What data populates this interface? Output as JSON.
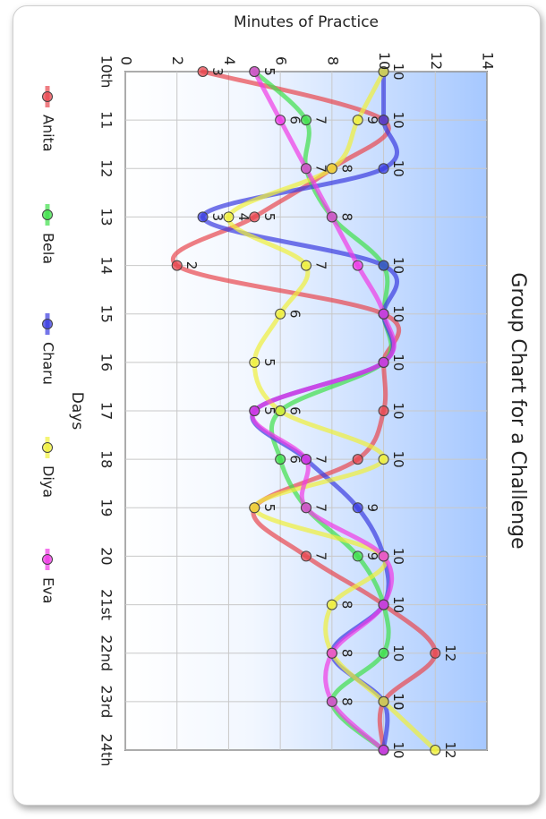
{
  "chart_data": {
    "type": "line",
    "title": "Group Chart for a Challenge",
    "xlabel": "Days",
    "ylabel": "Minutes of Practice",
    "ylim": [
      0,
      14
    ],
    "yticks": [
      "0",
      "2",
      "4",
      "6",
      "8",
      "10",
      "12",
      "14"
    ],
    "categories": [
      "10th",
      "11",
      "12",
      "13",
      "14",
      "15",
      "16",
      "17",
      "18",
      "19",
      "20",
      "21st",
      "22nd",
      "23rd",
      "24th"
    ],
    "grid": true,
    "legend_position": "bottom",
    "series": [
      {
        "name": "Anita",
        "color": "#e8474f",
        "values": [
          3,
          10,
          8,
          5,
          2,
          10,
          10,
          10,
          9,
          5,
          7,
          10,
          12,
          10,
          10
        ]
      },
      {
        "name": "Bela",
        "color": "#3fe04a",
        "values": [
          5,
          7,
          7,
          8,
          10,
          10,
          10,
          6,
          6,
          7,
          9,
          10,
          10,
          8,
          10
        ]
      },
      {
        "name": "Charu",
        "color": "#3a3ce0",
        "values": [
          10,
          10,
          10,
          3,
          10,
          10,
          10,
          5,
          7,
          9,
          10,
          10,
          8,
          10,
          10
        ]
      },
      {
        "name": "Diya",
        "color": "#f0f03a",
        "values": [
          10,
          9,
          8,
          4,
          7,
          6,
          5,
          6,
          10,
          5,
          10,
          8,
          8,
          10,
          12
        ]
      },
      {
        "name": "Eva",
        "color": "#f03ae6",
        "values": [
          5,
          6,
          7,
          8,
          9,
          10,
          10,
          5,
          7,
          7,
          10,
          10,
          8,
          8,
          10
        ]
      }
    ],
    "data_labels": {
      "Anita": [
        "3",
        "",
        "8",
        "5",
        "2",
        "10",
        "",
        "10",
        "",
        "5",
        "7",
        "10",
        "12",
        "10",
        "10"
      ],
      "Bela": [
        "5",
        "7",
        "7",
        "8",
        "",
        "",
        "",
        "6",
        "6",
        "7",
        "9",
        "",
        "10",
        "8",
        ""
      ],
      "Charu": [
        "10",
        "10",
        "10",
        "3",
        "10",
        "",
        "10",
        "5",
        "7",
        "9",
        "10",
        "",
        "8",
        "10",
        ""
      ],
      "Diya": [
        "",
        "9",
        "",
        "4",
        "7",
        "6",
        "5",
        "",
        "10",
        "",
        "",
        "8",
        "",
        "",
        "12"
      ],
      "Eva": [
        "5",
        "6",
        "",
        "",
        "",
        "",
        "",
        "",
        "",
        "",
        "",
        "",
        "",
        "",
        ""
      ]
    }
  }
}
